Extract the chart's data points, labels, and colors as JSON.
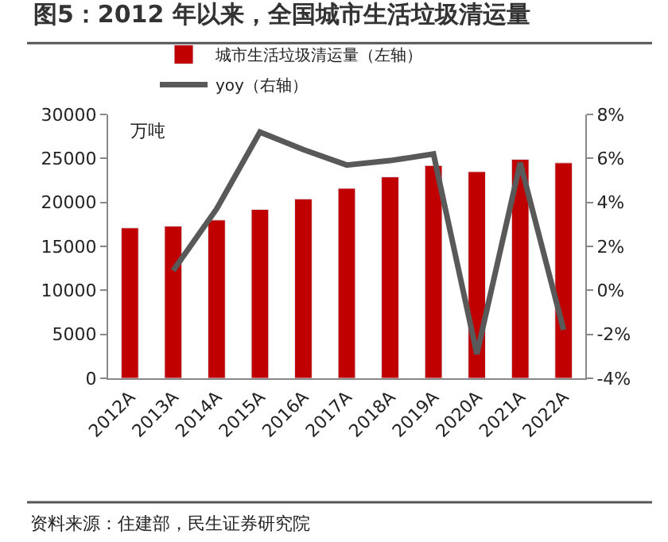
{
  "chart_data": {
    "type": "bar",
    "title": "图5：2012 年以来，全国城市生活垃圾清运量",
    "ylabel": "万吨",
    "categories": [
      "2012A",
      "2013A",
      "2014A",
      "2015A",
      "2016A",
      "2017A",
      "2018A",
      "2019A",
      "2020A",
      "2021A",
      "2022A"
    ],
    "series": [
      {
        "name": "城市生活垃圾清运量（左轴）",
        "color": "#c00000",
        "values": [
          17100,
          17300,
          18000,
          19200,
          20400,
          21600,
          22900,
          24200,
          23500,
          24900,
          24500
        ]
      },
      {
        "name": "yoy（右轴）",
        "type": "line",
        "axis": "y2",
        "color": "#595959",
        "values": [
          null,
          0.9,
          3.7,
          7.2,
          6.4,
          5.7,
          5.9,
          6.2,
          -2.9,
          5.8,
          -1.8
        ]
      }
    ],
    "ylim": [
      0,
      30000
    ],
    "yticks": [
      0,
      5000,
      10000,
      15000,
      20000,
      25000,
      30000
    ],
    "y2lim": [
      -4,
      8
    ],
    "y2ticks": [
      {
        "value": -4,
        "label": "-4%"
      },
      {
        "value": -2,
        "label": "-2%"
      },
      {
        "value": 0,
        "label": "0%"
      },
      {
        "value": 2,
        "label": "2%"
      },
      {
        "value": 4,
        "label": "4%"
      },
      {
        "value": 6,
        "label": "6%"
      },
      {
        "value": 8,
        "label": "8%"
      }
    ],
    "legend": "top",
    "annotations": [
      "资料来源：住建部，民生证券研究院"
    ]
  }
}
